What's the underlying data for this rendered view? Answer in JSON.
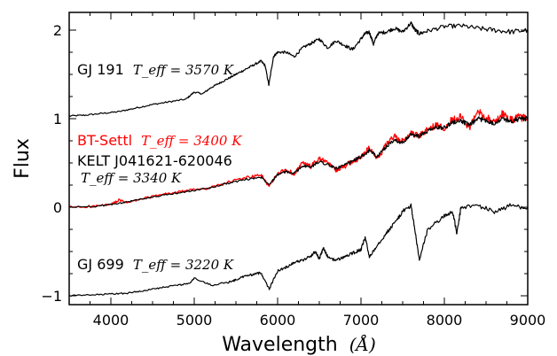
{
  "chart_data": {
    "type": "line",
    "xlabel": "Wavelength",
    "xlabel_unit": "(Å)",
    "ylabel": "Flux",
    "xlim": [
      3500,
      9000
    ],
    "ylim": [
      -1.1,
      2.2
    ],
    "xticks": [
      4000,
      5000,
      6000,
      7000,
      8000,
      9000
    ],
    "xtick_labels": [
      "4000",
      "5000",
      "6000",
      "7000",
      "8000",
      "9000"
    ],
    "yticks": [
      -1,
      0,
      1,
      2
    ],
    "ytick_labels": [
      "−1",
      "0",
      "1",
      "2"
    ],
    "grid": false,
    "series": [
      {
        "name": "GJ 191",
        "color": "#000000",
        "x": [
          3500,
          3700,
          3900,
          4100,
          4300,
          4500,
          4700,
          4900,
          5000,
          5100,
          5200,
          5300,
          5400,
          5500,
          5600,
          5700,
          5800,
          5850,
          5895,
          5950,
          6000,
          6100,
          6200,
          6300,
          6400,
          6500,
          6600,
          6700,
          6800,
          6900,
          7000,
          7050,
          7100,
          7150,
          7200,
          7300,
          7400,
          7500,
          7600,
          7650,
          7700,
          7800,
          8000,
          8200,
          8400,
          8600,
          8800,
          9000
        ],
        "y": [
          1.03,
          1.04,
          1.06,
          1.08,
          1.12,
          1.16,
          1.19,
          1.22,
          1.3,
          1.28,
          1.35,
          1.4,
          1.45,
          1.5,
          1.55,
          1.6,
          1.65,
          1.6,
          1.38,
          1.7,
          1.75,
          1.75,
          1.7,
          1.8,
          1.85,
          1.9,
          1.8,
          1.88,
          1.83,
          1.78,
          1.9,
          1.96,
          1.98,
          1.84,
          1.96,
          1.98,
          2.02,
          1.98,
          2.08,
          2.0,
          1.96,
          1.99,
          2.04,
          2.05,
          2.02,
          2.0,
          1.98,
          2.0
        ]
      },
      {
        "name": "BT-Settl",
        "color": "#ff0000",
        "x": [
          3500,
          3800,
          4000,
          4100,
          4200,
          4400,
          4600,
          4800,
          5000,
          5200,
          5400,
          5600,
          5800,
          5900,
          6000,
          6100,
          6200,
          6300,
          6400,
          6500,
          6600,
          6700,
          6800,
          6900,
          7000,
          7100,
          7200,
          7300,
          7400,
          7500,
          7600,
          7700,
          7800,
          7900,
          8000,
          8100,
          8200,
          8300,
          8400,
          8500,
          8600,
          8700,
          8800,
          8900,
          9000
        ],
        "y": [
          0.0,
          0.01,
          0.03,
          0.08,
          0.05,
          0.1,
          0.14,
          0.17,
          0.2,
          0.22,
          0.28,
          0.33,
          0.36,
          0.24,
          0.38,
          0.42,
          0.38,
          0.5,
          0.46,
          0.55,
          0.5,
          0.42,
          0.46,
          0.52,
          0.56,
          0.68,
          0.55,
          0.7,
          0.8,
          0.74,
          0.84,
          0.8,
          0.88,
          0.92,
          0.9,
          1.0,
          1.02,
          0.9,
          1.08,
          1.02,
          0.95,
          1.06,
          0.98,
          1.02,
          1.0
        ]
      },
      {
        "name": "KELT J041621-620046",
        "color": "#000000",
        "x": [
          3500,
          3800,
          4000,
          4200,
          4400,
          4600,
          4800,
          5000,
          5200,
          5400,
          5600,
          5800,
          5900,
          6000,
          6100,
          6200,
          6300,
          6400,
          6500,
          6600,
          6700,
          6800,
          6900,
          7000,
          7100,
          7200,
          7300,
          7400,
          7500,
          7600,
          7700,
          7800,
          7900,
          8000,
          8100,
          8200,
          8300,
          8400,
          8500,
          8600,
          8700,
          8800,
          8900,
          9000
        ],
        "y": [
          0.0,
          0.01,
          0.03,
          0.06,
          0.1,
          0.13,
          0.16,
          0.19,
          0.22,
          0.27,
          0.31,
          0.34,
          0.26,
          0.37,
          0.4,
          0.38,
          0.47,
          0.45,
          0.52,
          0.48,
          0.44,
          0.47,
          0.52,
          0.57,
          0.64,
          0.57,
          0.68,
          0.76,
          0.73,
          0.82,
          0.8,
          0.86,
          0.9,
          0.9,
          0.96,
          0.98,
          0.92,
          1.0,
          0.98,
          0.95,
          1.0,
          0.97,
          1.0,
          1.0
        ]
      },
      {
        "name": "GJ 699",
        "color": "#000000",
        "x": [
          3500,
          3800,
          4000,
          4200,
          4400,
          4600,
          4800,
          4950,
          5000,
          5200,
          5400,
          5500,
          5600,
          5700,
          5800,
          5900,
          6000,
          6100,
          6200,
          6300,
          6400,
          6450,
          6500,
          6550,
          6600,
          6700,
          6800,
          6900,
          7000,
          7050,
          7100,
          7200,
          7300,
          7400,
          7500,
          7600,
          7650,
          7700,
          7800,
          8000,
          8100,
          8150,
          8200,
          8400,
          8600,
          8800,
          9000
        ],
        "y": [
          -1.0,
          -0.99,
          -0.98,
          -0.97,
          -0.94,
          -0.91,
          -0.88,
          -0.86,
          -0.8,
          -0.88,
          -0.85,
          -0.82,
          -0.78,
          -0.76,
          -0.74,
          -0.92,
          -0.72,
          -0.68,
          -0.62,
          -0.6,
          -0.55,
          -0.5,
          -0.58,
          -0.46,
          -0.56,
          -0.6,
          -0.56,
          -0.52,
          -0.48,
          -0.34,
          -0.56,
          -0.42,
          -0.3,
          -0.18,
          -0.05,
          0.02,
          -0.28,
          -0.6,
          -0.25,
          -0.1,
          -0.05,
          -0.3,
          0.0,
          0.02,
          -0.05,
          0.02,
          0.0
        ]
      }
    ],
    "annotations": [
      {
        "name": "GJ 191",
        "math": "T_eff = 3570 K",
        "color": "#000000"
      },
      {
        "name": "BT-Settl",
        "math": "T_eff = 3400 K",
        "color": "#ff0000"
      },
      {
        "name": "KELT J041621-620046",
        "math": "T_eff = 3340 K",
        "color": "#000000"
      },
      {
        "name": "GJ 699",
        "math": "T_eff = 3220 K",
        "color": "#000000"
      }
    ]
  }
}
